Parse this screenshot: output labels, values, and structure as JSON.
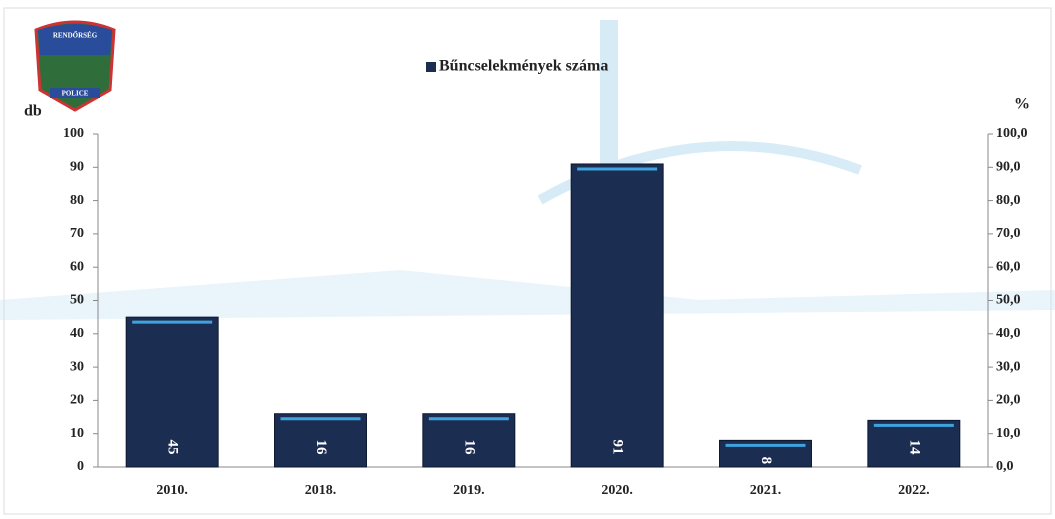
{
  "logo": {
    "top": "RENDŐRSÉG",
    "bottom": "POLICE"
  },
  "chart_data": {
    "type": "bar",
    "legend": "Bűncselekmények száma",
    "y_label": "db",
    "y2_label": "%",
    "categories": [
      "2010.",
      "2018.",
      "2019.",
      "2020.",
      "2021.",
      "2022."
    ],
    "series": [
      {
        "name": "Bűncselekmények száma",
        "color": "#1c2d52",
        "values": [
          45,
          16,
          16,
          91,
          8,
          14
        ]
      }
    ],
    "ylim": [
      0,
      100
    ],
    "yticks": [
      0,
      10,
      20,
      30,
      40,
      50,
      60,
      70,
      80,
      90,
      100
    ],
    "y2lim": [
      0,
      100
    ],
    "y2ticks": [
      {
        "value": 0,
        "label": "0,0"
      },
      {
        "value": 10,
        "label": "10,0"
      },
      {
        "value": 20,
        "label": "20,0"
      },
      {
        "value": 30,
        "label": "30,0"
      },
      {
        "value": 40,
        "label": "40,0"
      },
      {
        "value": 50,
        "label": "50,0"
      },
      {
        "value": 60,
        "label": "60,0"
      },
      {
        "value": 70,
        "label": "70,0"
      },
      {
        "value": 80,
        "label": "80,0"
      },
      {
        "value": 90,
        "label": "90,0"
      },
      {
        "value": 100,
        "label": "100,0"
      }
    ],
    "grid": false
  }
}
